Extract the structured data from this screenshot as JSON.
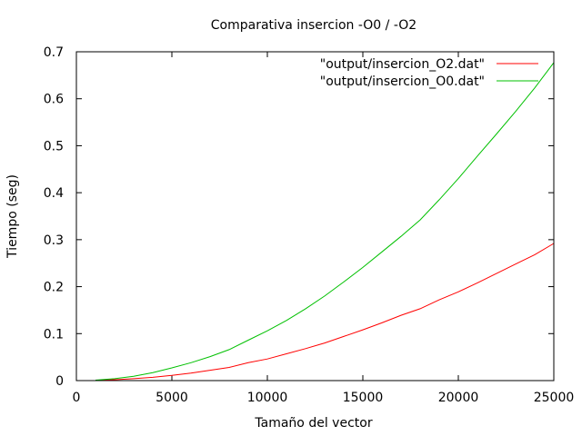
{
  "chart_data": {
    "type": "line",
    "title": "Comparativa insercion -O0 / -O2",
    "xlabel": "Tamaño del vector",
    "ylabel": "Tiempo (seg)",
    "xlim": [
      0,
      25000
    ],
    "ylim": [
      0,
      0.7
    ],
    "xticks": [
      0,
      5000,
      10000,
      15000,
      20000,
      25000
    ],
    "yticks": [
      0,
      0.1,
      0.2,
      0.3,
      0.4,
      0.5,
      0.6,
      0.7
    ],
    "xtick_labels": [
      "0",
      "5000",
      "10000",
      "15000",
      "20000",
      "25000"
    ],
    "ytick_labels": [
      "0",
      "0.1",
      "0.2",
      "0.3",
      "0.4",
      "0.5",
      "0.6",
      "0.7"
    ],
    "grid": false,
    "legend_position": "top-right",
    "series": [
      {
        "name": "\"output/insercion_O2.dat\"",
        "color": "#ff0000",
        "x": [
          1000,
          2000,
          3000,
          4000,
          5000,
          6000,
          7000,
          8000,
          9000,
          10000,
          11000,
          12000,
          13000,
          14000,
          15000,
          16000,
          17000,
          18000,
          19000,
          20000,
          21000,
          22000,
          23000,
          24000,
          25000
        ],
        "y": [
          0.0005,
          0.002,
          0.004,
          0.007,
          0.011,
          0.016,
          0.022,
          0.028,
          0.038,
          0.046,
          0.057,
          0.068,
          0.08,
          0.094,
          0.108,
          0.123,
          0.139,
          0.153,
          0.172,
          0.189,
          0.208,
          0.228,
          0.248,
          0.268,
          0.292
        ]
      },
      {
        "name": "\"output/insercion_O0.dat\"",
        "color": "#00c000",
        "x": [
          1000,
          2000,
          3000,
          4000,
          5000,
          6000,
          7000,
          8000,
          9000,
          10000,
          11000,
          12000,
          13000,
          14000,
          15000,
          16000,
          17000,
          18000,
          19000,
          20000,
          21000,
          22000,
          23000,
          24000,
          25000
        ],
        "y": [
          0.001,
          0.004,
          0.009,
          0.017,
          0.027,
          0.038,
          0.051,
          0.066,
          0.086,
          0.106,
          0.128,
          0.153,
          0.18,
          0.21,
          0.241,
          0.274,
          0.307,
          0.342,
          0.385,
          0.43,
          0.478,
          0.525,
          0.573,
          0.623,
          0.677
        ]
      }
    ]
  }
}
